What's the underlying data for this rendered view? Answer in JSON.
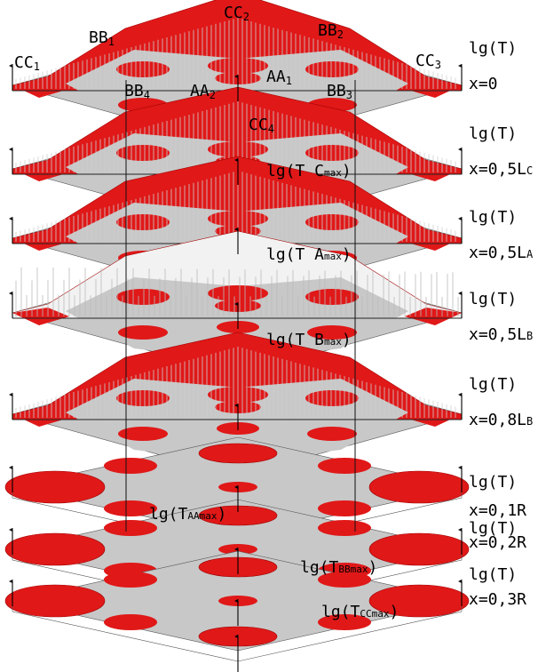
{
  "colors": {
    "surface": "#c8c8c8",
    "peak": "#e01818",
    "peak_dark": "#a00000",
    "spike": "#f2f2f2",
    "ink": "#000000"
  },
  "point_labels": [
    {
      "key": "CC",
      "sub": "2"
    },
    {
      "key": "BB",
      "sub": "1"
    },
    {
      "key": "BB",
      "sub": "2"
    },
    {
      "key": "CC",
      "sub": "1"
    },
    {
      "key": "CC",
      "sub": "3"
    },
    {
      "key": "AA",
      "sub": "1"
    },
    {
      "key": "BB",
      "sub": "4"
    },
    {
      "key": "AA",
      "sub": "2"
    },
    {
      "key": "BB",
      "sub": "3"
    },
    {
      "key": "CC",
      "sub": "4"
    }
  ],
  "layers": [
    {
      "axis_label": "lg(T)",
      "x_main": "x=0",
      "x_sub": "",
      "inner_main": "",
      "inner_sub": "",
      "inner_end": ""
    },
    {
      "axis_label": "lg(T)",
      "x_main": "x=0,5L",
      "x_sub": "C",
      "inner_main": "lg(T C",
      "inner_sub": "max",
      "inner_end": ")"
    },
    {
      "axis_label": "lg(T)",
      "x_main": "x=0,5L",
      "x_sub": "A",
      "inner_main": "lg(T A",
      "inner_sub": "max",
      "inner_end": ")"
    },
    {
      "axis_label": "lg(T)",
      "x_main": "x=0,5L",
      "x_sub": "B",
      "inner_main": "lg(T B",
      "inner_sub": "max",
      "inner_end": ")"
    },
    {
      "axis_label": "lg(T)",
      "x_main": "x=0,8L",
      "x_sub": "B",
      "inner_main": "",
      "inner_sub": "",
      "inner_end": ""
    },
    {
      "axis_label": "lg(T)",
      "x_main": "x=0,1R",
      "x_sub": "",
      "inner_main": "lg(T",
      "inner_sub": "AAmax",
      "inner_end": ")"
    },
    {
      "axis_label": "lg(T)",
      "x_main": "x=0,2R",
      "x_sub": "",
      "inner_main": "lg(T",
      "inner_sub": "BBmax",
      "inner_end": ")"
    },
    {
      "axis_label": "lg(T)",
      "x_main": "x=0,3R",
      "x_sub": "",
      "inner_main": "lg(T",
      "inner_sub": "CCmax",
      "inner_end": ")"
    }
  ]
}
